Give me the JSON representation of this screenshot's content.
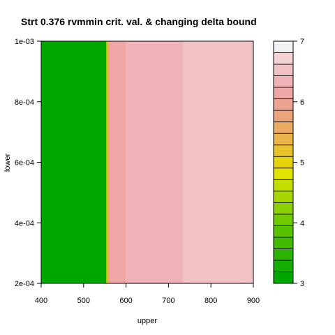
{
  "chart_data": {
    "type": "heatmap",
    "title": "Strt 0.376 rvmmin crit. val. & changing delta bound",
    "xlabel": "upper",
    "ylabel": "lower",
    "xlim": [
      400,
      900
    ],
    "ylim": [
      0.0002,
      0.001
    ],
    "x_ticks": [
      400,
      500,
      600,
      700,
      800,
      900
    ],
    "x_tick_labels": [
      "400",
      "500",
      "600",
      "700",
      "800",
      "900"
    ],
    "y_ticks": [
      0.0002,
      0.0004,
      0.0006,
      0.0008,
      0.001
    ],
    "y_tick_labels": [
      "2e-04",
      "4e-04",
      "6e-04",
      "8e-04",
      "1e-03"
    ],
    "bands": [
      {
        "x0": 400,
        "x1": 553,
        "value": 3.0
      },
      {
        "x0": 553,
        "x1": 556,
        "value": 4.3
      },
      {
        "x0": 556,
        "x1": 558,
        "value": 5.3
      },
      {
        "x0": 558,
        "x1": 562,
        "value": 5.9
      },
      {
        "x0": 562,
        "x1": 600,
        "value": 6.1
      },
      {
        "x0": 600,
        "x1": 735,
        "value": 6.3
      },
      {
        "x0": 735,
        "x1": 900,
        "value": 6.6
      }
    ],
    "colorbar": {
      "min": 3,
      "max": 7,
      "ticks": [
        3,
        4,
        5,
        6,
        7
      ],
      "tick_labels": [
        "3",
        "4",
        "5",
        "6",
        "7"
      ],
      "colors": [
        "#00a600",
        "#14ad00",
        "#2ab400",
        "#41bb00",
        "#58c200",
        "#71c900",
        "#8bd000",
        "#a6d700",
        "#c2de00",
        "#e0e500",
        "#e6d30b",
        "#e8c22c",
        "#eab44a",
        "#ebaa63",
        "#eca47b",
        "#eda391",
        "#eea7a5",
        "#efb2b6",
        "#f0c2c4",
        "#f1d4d3",
        "#f2f2f2"
      ]
    }
  }
}
